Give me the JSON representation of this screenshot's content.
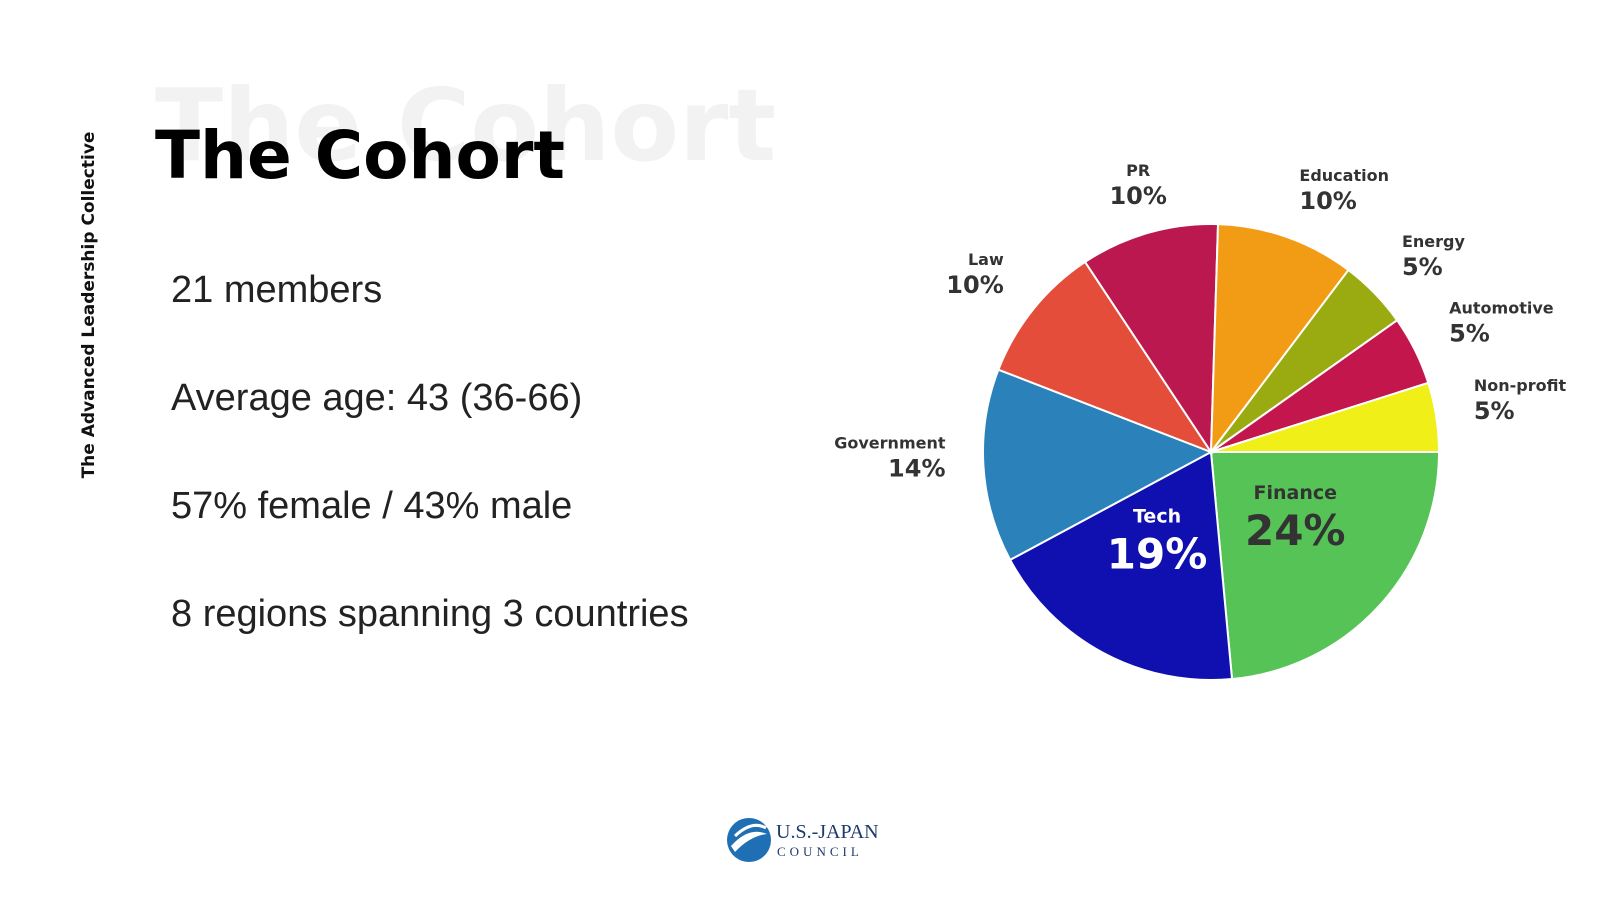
{
  "sidebar": "The Advanced Leadership Collective",
  "title": "The Cohort",
  "lines": [
    "21 members",
    "Average age: 43 (36-66)",
    "57% female / 43% male",
    "8 regions spanning 3 countries"
  ],
  "logo": {
    "name": "U.S.-JAPAN",
    "sub": "COUNCIL"
  },
  "chart_data": {
    "type": "pie",
    "categories": [
      "Finance",
      "Tech",
      "Government",
      "Law",
      "PR",
      "Education",
      "Energy",
      "Automotive",
      "Non-profit"
    ],
    "values": [
      24,
      19,
      14,
      10,
      10,
      10,
      5,
      5,
      5
    ],
    "value_labels": [
      "24%",
      "19%",
      "14%",
      "10%",
      "10%",
      "10%",
      "5%",
      "5%",
      "5%"
    ],
    "colors": [
      "#55c355",
      "#1010b0",
      "#2b82ba",
      "#e54d3b",
      "#bb1850",
      "#f29c15",
      "#9aab12",
      "#c3164c",
      "#f0ef17"
    ]
  }
}
